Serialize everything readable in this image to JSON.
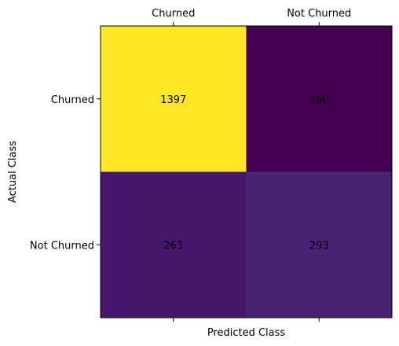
{
  "chart_data": {
    "type": "heatmap",
    "colormap": "viridis",
    "x_categories": [
      "Churned",
      "Not Churned"
    ],
    "y_categories": [
      "Churned",
      "Not Churned"
    ],
    "values": [
      [
        1397,
        160
      ],
      [
        263,
        293
      ]
    ],
    "xlabel": "Predicted Class",
    "ylabel": "Actual Class",
    "x_tick_labels_position": "top",
    "grid": false,
    "colors": {
      "1397": "#fde725",
      "160": "#440154",
      "263": "#47176d",
      "293": "#482273"
    }
  }
}
